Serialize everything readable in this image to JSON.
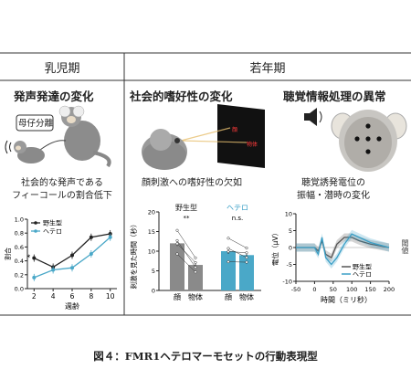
{
  "panels": {
    "infant": {
      "header": "乳児期",
      "title": "発声発達の変化",
      "bubble_label": "母仔分離",
      "caption_line1": "社会的な発声である",
      "caption_line2": "フィーコールの割合低下",
      "chart_data": {
        "type": "line",
        "xlabel": "週齢",
        "ylabel": "割合",
        "x": [
          2,
          4,
          6,
          8,
          10
        ],
        "x_ticks": [
          "2",
          "4",
          "6",
          "8",
          "10"
        ],
        "y_ticks": [
          "0.0",
          "0.2",
          "0.4",
          "0.6",
          "0.8",
          "1.0"
        ],
        "ylim": [
          0.0,
          1.0
        ],
        "series": [
          {
            "name": "野生型",
            "color": "#222222",
            "values": [
              0.44,
              0.31,
              0.48,
              0.74,
              0.79
            ]
          },
          {
            "name": "ヘテロ",
            "color": "#4aa8c8",
            "values": [
              0.16,
              0.27,
              0.3,
              0.5,
              0.74
            ]
          }
        ],
        "legend_position": "top-left",
        "annotations": [
          "*"
        ]
      }
    },
    "adolescent_header": "若年期",
    "social": {
      "title": "社会的嗜好性の変化",
      "screen_labels": [
        "顔",
        "物体"
      ],
      "caption": "顔刺激への嗜好性の欠如",
      "chart_data": {
        "type": "bar",
        "ylabel": "刺激を見た時間（秒）",
        "groups": [
          "野生型",
          "ヘテロ"
        ],
        "categories": [
          "顔",
          "物体"
        ],
        "series": [
          {
            "name": "野生型",
            "color": "#8a8a8a",
            "values": [
              12,
              6.5
            ]
          },
          {
            "name": "ヘテロ",
            "color": "#4aa8c8",
            "values": [
              10,
              9
            ]
          }
        ],
        "significance": [
          "**",
          "n.s."
        ],
        "y_ticks": [
          "0",
          "5",
          "10",
          "15",
          "20"
        ],
        "ylim": [
          0,
          20
        ]
      }
    },
    "auditory": {
      "title": "聴覚情報処理の異常",
      "caption_line1": "聴覚誘発電位の",
      "caption_line2": "振幅・潜時の変化",
      "chart_data": {
        "type": "line",
        "xlabel": "時間（ミリ秒）",
        "ylabel": "電位（μV）",
        "x_ticks": [
          "-50",
          "0",
          "50",
          "100",
          "150",
          "200"
        ],
        "y_ticks": [
          "-10",
          "-5",
          "0",
          "5",
          "10"
        ],
        "xlim": [
          -50,
          200
        ],
        "ylim": [
          -10,
          10
        ],
        "series": [
          {
            "name": "野生型",
            "color": "#555555",
            "x": [
              -50,
              0,
              10,
              20,
              30,
              45,
              60,
              80,
              100,
              120,
              150,
              200
            ],
            "values": [
              0,
              0,
              -1,
              2,
              -2,
              -3,
              1,
              3,
              3,
              2,
              1,
              0
            ]
          },
          {
            "name": "ヘテロ",
            "color": "#3a9fc6",
            "x": [
              -50,
              0,
              10,
              20,
              30,
              45,
              60,
              80,
              100,
              120,
              150,
              200
            ],
            "values": [
              0,
              0,
              -2,
              3,
              -3,
              -5,
              -3,
              1,
              4,
              3,
              1.5,
              0
            ]
          }
        ],
        "legend_position": "bottom-right"
      },
      "right_partial_label": "閾値"
    }
  },
  "figure_caption": "図４：FMR1ヘテロマーモセットの行動表現型"
}
